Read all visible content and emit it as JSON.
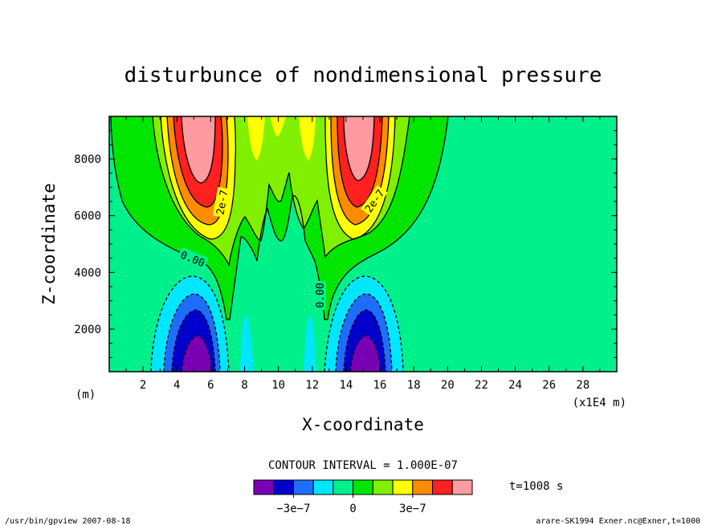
{
  "chart_data": {
    "type": "heatmap",
    "title": "disturbunce of nondimensional pressure",
    "xlabel": "X-coordinate",
    "ylabel": "Z-coordinate",
    "x_unit_left": "(m)",
    "x_unit_right": "(x1E4 m)",
    "xlim": [
      0,
      30
    ],
    "ylim": [
      500,
      9500
    ],
    "x_ticks": [
      2,
      4,
      6,
      8,
      10,
      12,
      14,
      16,
      18,
      20,
      22,
      24,
      26,
      28
    ],
    "y_ticks": [
      2000,
      4000,
      6000,
      8000
    ],
    "x_tick_labels": [
      "2",
      "4",
      "6",
      "8",
      "10",
      "12",
      "14",
      "16",
      "18",
      "20",
      "22",
      "24",
      "26",
      "28"
    ],
    "y_tick_labels": [
      "2000",
      "4000",
      "6000",
      "8000"
    ],
    "contour_interval_text": "CONTOUR INTERVAL = 1.000E-07",
    "contour_labels": [
      "0.00",
      "2e-7",
      "0.00",
      "2e-7"
    ],
    "colorbar": {
      "levels": [
        -5e-07,
        -4e-07,
        -3e-07,
        -2e-07,
        -1e-07,
        0,
        1e-07,
        2e-07,
        3e-07,
        4e-07,
        5e-07,
        6e-07
      ],
      "colors": [
        "#7a00b4",
        "#0000cc",
        "#1f6dff",
        "#00e6ff",
        "#00f08c",
        "#00e600",
        "#80f000",
        "#ffff00",
        "#ff8c00",
        "#ff2020",
        "#ff9aa0"
      ],
      "tick_labels": [
        "−3e−7",
        "0",
        "3e−7"
      ]
    },
    "time_label": "t=1008 s",
    "footer_left": "/usr/bin/gpview   2007-08-18",
    "footer_right": "arare-SK1994_Exner.nc@Exner,t=1000"
  }
}
